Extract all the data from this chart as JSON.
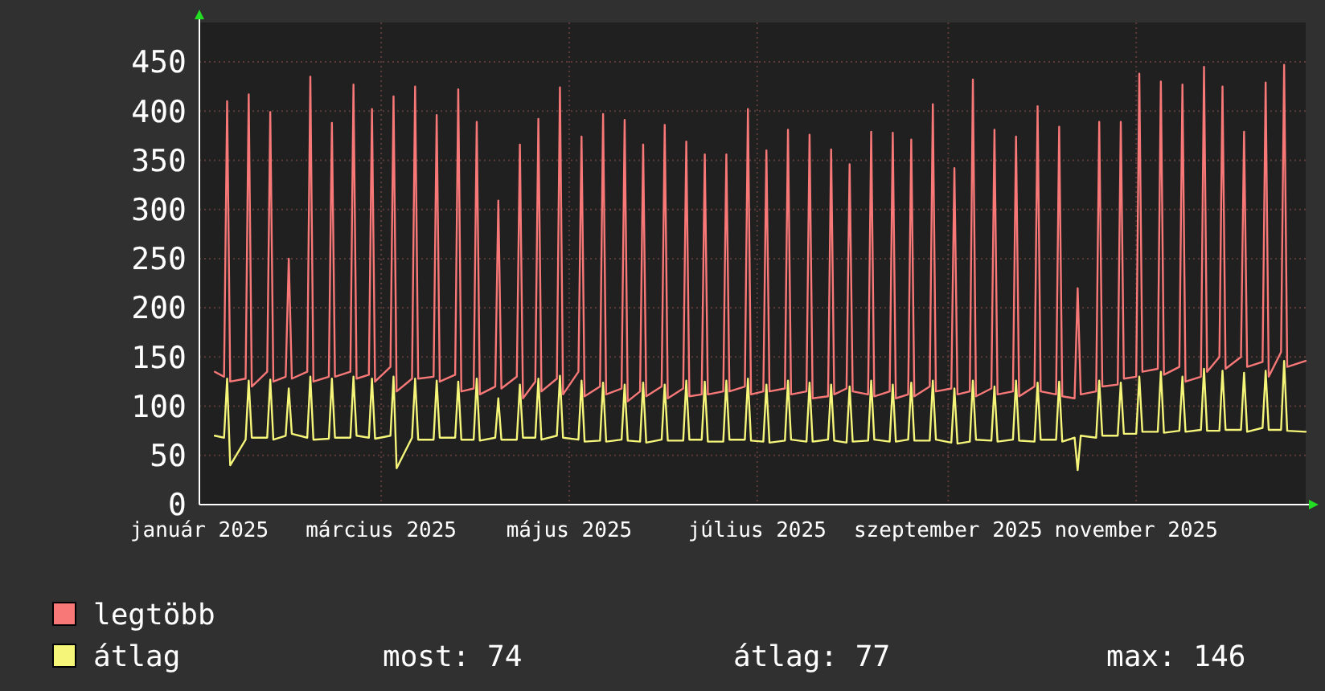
{
  "chart_data": {
    "type": "line",
    "legend": "bottom",
    "grid": true,
    "xlim": [
      "2025-01-01",
      "2025-12-26"
    ],
    "ylim": [
      0,
      490
    ],
    "yticks": [
      0,
      50,
      100,
      150,
      200,
      250,
      300,
      350,
      400,
      450
    ],
    "xticks": [
      {
        "value": "2025-01-01",
        "label": "január 2025"
      },
      {
        "value": "2025-03-01",
        "label": "március 2025"
      },
      {
        "value": "2025-05-01",
        "label": "május 2025"
      },
      {
        "value": "2025-07-01",
        "label": "július 2025"
      },
      {
        "value": "2025-09-01",
        "label": "szeptember 2025"
      },
      {
        "value": "2025-11-01",
        "label": "november 2025"
      }
    ],
    "x": [
      "2025-01-06",
      "2025-01-09",
      "2025-01-10",
      "2025-01-11",
      "2025-01-16",
      "2025-01-17",
      "2025-01-18",
      "2025-01-23",
      "2025-01-24",
      "2025-01-25",
      "2025-01-29",
      "2025-01-30",
      "2025-01-31",
      "2025-02-05",
      "2025-02-06",
      "2025-02-07",
      "2025-02-12",
      "2025-02-13",
      "2025-02-14",
      "2025-02-19",
      "2025-02-20",
      "2025-02-21",
      "2025-02-25",
      "2025-02-26",
      "2025-02-27",
      "2025-03-04",
      "2025-03-05",
      "2025-03-06",
      "2025-03-11",
      "2025-03-12",
      "2025-03-13",
      "2025-03-18",
      "2025-03-19",
      "2025-03-20",
      "2025-03-25",
      "2025-03-26",
      "2025-03-27",
      "2025-03-31",
      "2025-04-01",
      "2025-04-02",
      "2025-04-07",
      "2025-04-08",
      "2025-04-09",
      "2025-04-14",
      "2025-04-15",
      "2025-04-16",
      "2025-04-20",
      "2025-04-21",
      "2025-04-22",
      "2025-04-27",
      "2025-04-28",
      "2025-04-29",
      "2025-05-04",
      "2025-05-05",
      "2025-05-06",
      "2025-05-11",
      "2025-05-12",
      "2025-05-13",
      "2025-05-18",
      "2025-05-19",
      "2025-05-20",
      "2025-05-24",
      "2025-05-25",
      "2025-05-26",
      "2025-05-31",
      "2025-06-01",
      "2025-06-02",
      "2025-06-07",
      "2025-06-08",
      "2025-06-09",
      "2025-06-13",
      "2025-06-14",
      "2025-06-15",
      "2025-06-20",
      "2025-06-21",
      "2025-06-22",
      "2025-06-27",
      "2025-06-28",
      "2025-06-29",
      "2025-07-03",
      "2025-07-04",
      "2025-07-05",
      "2025-07-10",
      "2025-07-11",
      "2025-07-12",
      "2025-07-17",
      "2025-07-18",
      "2025-07-19",
      "2025-07-24",
      "2025-07-25",
      "2025-07-26",
      "2025-07-30",
      "2025-07-31",
      "2025-08-01",
      "2025-08-06",
      "2025-08-07",
      "2025-08-08",
      "2025-08-13",
      "2025-08-14",
      "2025-08-15",
      "2025-08-19",
      "2025-08-20",
      "2025-08-21",
      "2025-08-26",
      "2025-08-27",
      "2025-08-28",
      "2025-09-02",
      "2025-09-03",
      "2025-09-04",
      "2025-09-08",
      "2025-09-09",
      "2025-09-10",
      "2025-09-15",
      "2025-09-16",
      "2025-09-17",
      "2025-09-22",
      "2025-09-23",
      "2025-09-24",
      "2025-09-29",
      "2025-09-30",
      "2025-10-01",
      "2025-10-06",
      "2025-10-07",
      "2025-10-08",
      "2025-10-12",
      "2025-10-13",
      "2025-10-14",
      "2025-10-19",
      "2025-10-20",
      "2025-10-21",
      "2025-10-26",
      "2025-10-27",
      "2025-10-28",
      "2025-11-01",
      "2025-11-02",
      "2025-11-03",
      "2025-11-08",
      "2025-11-09",
      "2025-11-10",
      "2025-11-15",
      "2025-11-16",
      "2025-11-17",
      "2025-11-22",
      "2025-11-23",
      "2025-11-24",
      "2025-11-28",
      "2025-11-29",
      "2025-11-30",
      "2025-12-05",
      "2025-12-06",
      "2025-12-07",
      "2025-12-12",
      "2025-12-13",
      "2025-12-14",
      "2025-12-18",
      "2025-12-19",
      "2025-12-20",
      "2025-12-26"
    ],
    "series": [
      {
        "name": "legtöbb",
        "color": "#f87878",
        "values": [
          135,
          130,
          410,
          125,
          128,
          417,
          120,
          135,
          399,
          125,
          130,
          250,
          128,
          135,
          435,
          125,
          130,
          388,
          130,
          135,
          427,
          128,
          132,
          402,
          125,
          140,
          415,
          115,
          128,
          425,
          128,
          130,
          396,
          125,
          132,
          422,
          115,
          118,
          389,
          112,
          120,
          309,
          118,
          130,
          366,
          108,
          125,
          392,
          115,
          128,
          424,
          112,
          135,
          374,
          110,
          120,
          397,
          112,
          118,
          391,
          105,
          115,
          366,
          110,
          120,
          386,
          108,
          118,
          369,
          110,
          112,
          356,
          112,
          115,
          356,
          115,
          120,
          402,
          112,
          115,
          360,
          115,
          118,
          381,
          112,
          115,
          376,
          108,
          110,
          361,
          112,
          118,
          346,
          115,
          112,
          379,
          110,
          115,
          378,
          108,
          112,
          371,
          110,
          120,
          407,
          115,
          118,
          342,
          112,
          115,
          432,
          110,
          118,
          381,
          112,
          115,
          374,
          110,
          120,
          405,
          115,
          112,
          384,
          110,
          108,
          220,
          112,
          115,
          389,
          120,
          122,
          389,
          128,
          130,
          438,
          135,
          138,
          430,
          132,
          140,
          427,
          125,
          130,
          445,
          135,
          150,
          425,
          138,
          150,
          379,
          140,
          145,
          429,
          130,
          155,
          447,
          140,
          146
        ]
      },
      {
        "name": "átlag",
        "color": "#f5f57a",
        "values": [
          70,
          68,
          128,
          40,
          66,
          126,
          68,
          68,
          127,
          66,
          70,
          118,
          72,
          68,
          130,
          66,
          67,
          128,
          68,
          68,
          130,
          70,
          68,
          128,
          67,
          70,
          130,
          37,
          68,
          128,
          66,
          66,
          126,
          68,
          68,
          125,
          66,
          66,
          128,
          65,
          68,
          108,
          66,
          66,
          122,
          68,
          68,
          128,
          66,
          70,
          131,
          68,
          66,
          126,
          64,
          65,
          124,
          64,
          66,
          122,
          65,
          64,
          124,
          63,
          66,
          122,
          65,
          65,
          126,
          66,
          66,
          125,
          64,
          64,
          126,
          66,
          66,
          128,
          65,
          64,
          122,
          63,
          65,
          126,
          66,
          64,
          124,
          64,
          66,
          122,
          65,
          63,
          120,
          64,
          65,
          126,
          66,
          64,
          122,
          64,
          66,
          124,
          65,
          65,
          126,
          66,
          63,
          118,
          62,
          64,
          126,
          66,
          65,
          120,
          64,
          66,
          126,
          65,
          64,
          124,
          66,
          66,
          125,
          64,
          68,
          35,
          70,
          68,
          126,
          70,
          70,
          124,
          72,
          72,
          130,
          74,
          74,
          135,
          73,
          75,
          130,
          74,
          76,
          138,
          75,
          75,
          136,
          76,
          76,
          134,
          74,
          78,
          136,
          76,
          76,
          146,
          75,
          74
        ]
      }
    ],
    "annotations": [
      "most: 74",
      "átlag: 77",
      "max: 146"
    ]
  }
}
